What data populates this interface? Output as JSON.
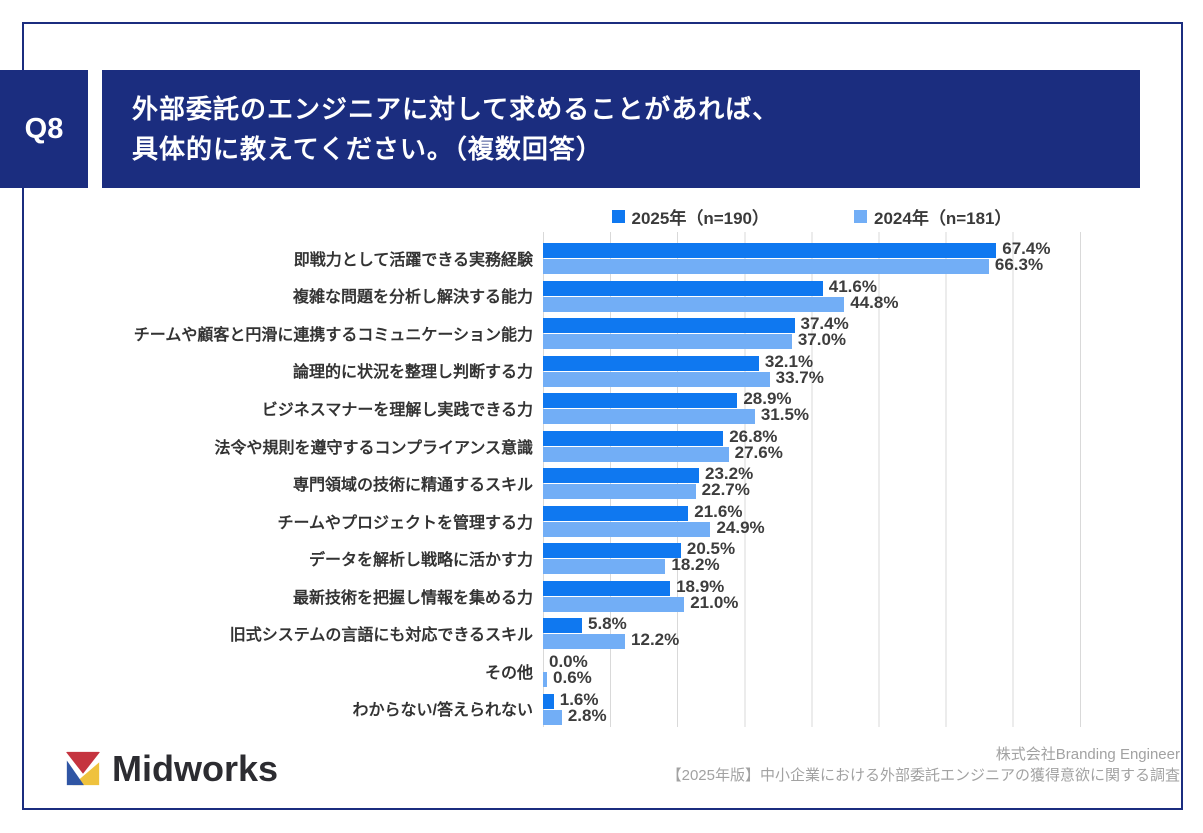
{
  "header": {
    "question_number": "Q8",
    "title_line1": "外部委託のエンジニアに対して求めることがあれば、",
    "title_line2": "具体的に教えてください。（複数回答）"
  },
  "chart_data": {
    "type": "bar",
    "orientation": "horizontal",
    "categories": [
      "即戦力として活躍できる実務経験",
      "複雑な問題を分析し解決する能力",
      "チームや顧客と円滑に連携するコミュニケーション能力",
      "論理的に状況を整理し判断する力",
      "ビジネスマナーを理解し実践できる力",
      "法令や規則を遵守するコンプライアンス意識",
      "専門領域の技術に精通するスキル",
      "チームやプロジェクトを管理する力",
      "データを解析し戦略に活かす力",
      "最新技術を把握し情報を集める力",
      "旧式システムの言語にも対応できるスキル",
      "その他",
      "わからない/答えられない"
    ],
    "series": [
      {
        "name": "2025年（n=190）",
        "color": "#0f78f0",
        "values": [
          67.4,
          41.6,
          37.4,
          32.1,
          28.9,
          26.8,
          23.2,
          21.6,
          20.5,
          18.9,
          5.8,
          0.0,
          1.6
        ]
      },
      {
        "name": "2024年（n=181）",
        "color": "#72aef6",
        "values": [
          66.3,
          44.8,
          37.0,
          33.7,
          31.5,
          27.6,
          22.7,
          24.9,
          18.2,
          21.0,
          12.2,
          0.6,
          2.8
        ]
      }
    ],
    "xlim": [
      0,
      80
    ],
    "gridline_step": 10,
    "grid": "vertical-lines",
    "legend_position": "top",
    "value_suffix": "%"
  },
  "footer": {
    "brand": "Midworks",
    "attribution_line1": "株式会社Branding Engineer",
    "attribution_line2": "【2025年版】中小企業における外部委託エンジニアの獲得意欲に関する調査"
  },
  "colors": {
    "navy": "#1b2d7f",
    "bar_2025": "#0f78f0",
    "bar_2024": "#72aef6",
    "grid": "#d9d9d9",
    "logo_red": "#c5343f",
    "logo_blue": "#2f55a4",
    "logo_yellow": "#efc23d"
  }
}
